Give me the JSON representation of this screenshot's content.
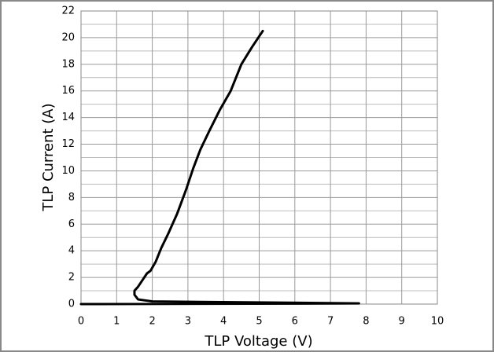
{
  "chart_data": {
    "type": "line",
    "x_label": "TLP Voltage (V)",
    "y_label": "TLP Current (A)",
    "x": [
      0,
      7.8,
      2.0,
      1.6,
      1.5,
      1.5,
      1.6,
      1.7,
      1.85,
      1.95,
      2.1,
      2.25,
      2.45,
      2.7,
      2.95,
      3.15,
      3.35,
      3.6,
      3.9,
      4.2,
      4.5,
      4.8,
      5.1
    ],
    "series": [
      {
        "color": "#000000",
        "values": [
          0,
          0.05,
          0.2,
          0.35,
          0.7,
          1.0,
          1.3,
          1.7,
          2.3,
          2.5,
          3.2,
          4.2,
          5.3,
          6.8,
          8.6,
          10.2,
          11.6,
          13,
          14.6,
          16,
          18,
          19.3,
          20.5
        ]
      }
    ],
    "xlim": [
      0,
      10
    ],
    "xticks": [
      0,
      1,
      2,
      3,
      4,
      5,
      6,
      7,
      8,
      9,
      10
    ],
    "ylim": [
      0,
      22
    ],
    "yticks": [
      0,
      2,
      4,
      6,
      8,
      10,
      12,
      14,
      16,
      18,
      20,
      22
    ],
    "y_minor_ticks": [
      1,
      3,
      5,
      7,
      9,
      11,
      13,
      15,
      17,
      19,
      21
    ],
    "grid": true
  }
}
